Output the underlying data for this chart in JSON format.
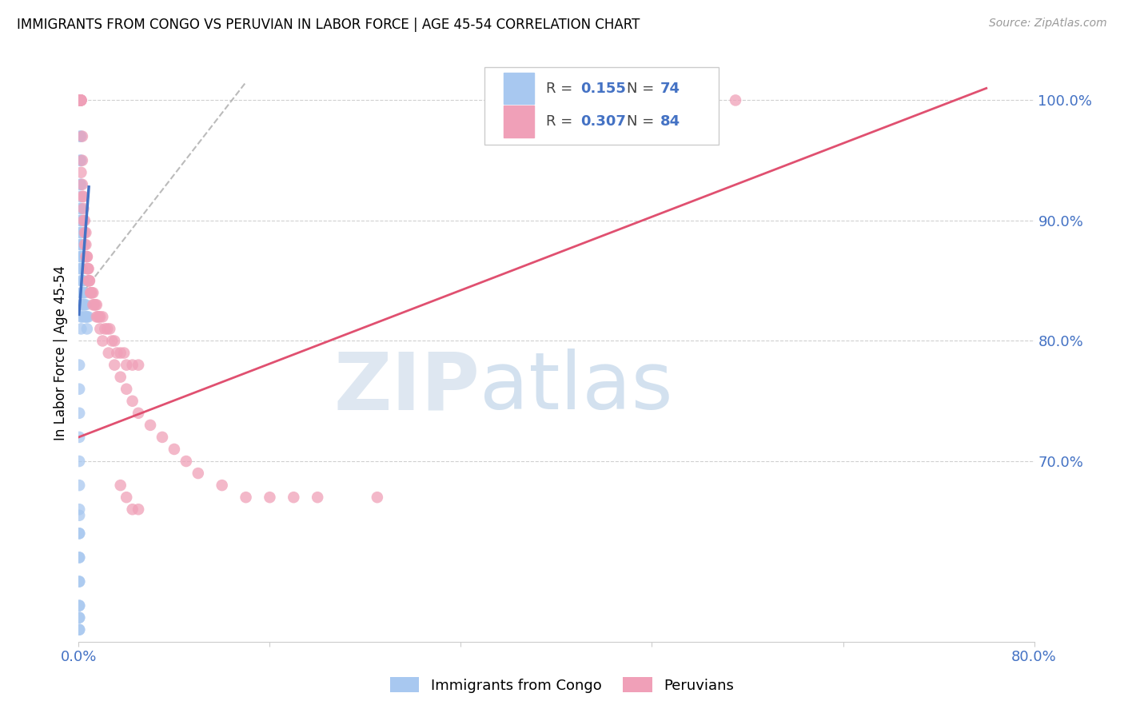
{
  "title": "IMMIGRANTS FROM CONGO VS PERUVIAN IN LABOR FORCE | AGE 45-54 CORRELATION CHART",
  "source": "Source: ZipAtlas.com",
  "ylabel_left": "In Labor Force | Age 45-54",
  "xlim": [
    0.0,
    0.8
  ],
  "ylim": [
    0.55,
    1.03
  ],
  "right_yticks": [
    1.0,
    0.9,
    0.8,
    0.7
  ],
  "right_ytick_labels": [
    "100.0%",
    "90.0%",
    "80.0%",
    "70.0%"
  ],
  "legend_R1": "0.155",
  "legend_N1": "74",
  "legend_R2": "0.307",
  "legend_N2": "84",
  "blue_color": "#a8c8f0",
  "pink_color": "#f0a0b8",
  "blue_line_color": "#4472c4",
  "pink_line_color": "#e05070",
  "right_axis_color": "#4472c4",
  "watermark_zip": "ZIP",
  "watermark_atlas": "atlas",
  "grid_color": "#d0d0d0",
  "congo_x": [
    0.001,
    0.001,
    0.001,
    0.001,
    0.001,
    0.001,
    0.001,
    0.001,
    0.001,
    0.001,
    0.001,
    0.001,
    0.001,
    0.001,
    0.001,
    0.001,
    0.001,
    0.001,
    0.001,
    0.001,
    0.002,
    0.002,
    0.002,
    0.002,
    0.002,
    0.002,
    0.002,
    0.002,
    0.002,
    0.002,
    0.002,
    0.002,
    0.002,
    0.002,
    0.003,
    0.003,
    0.003,
    0.003,
    0.003,
    0.003,
    0.003,
    0.003,
    0.004,
    0.004,
    0.004,
    0.004,
    0.005,
    0.005,
    0.005,
    0.006,
    0.006,
    0.007,
    0.007,
    0.008,
    0.0005,
    0.0005,
    0.0005,
    0.0005,
    0.0005,
    0.0005,
    0.0005,
    0.0005,
    0.0005,
    0.0005,
    0.0005,
    0.0005,
    0.0005,
    0.0005,
    0.0005,
    0.0005,
    0.0005,
    0.0005,
    0.0005,
    0.0005
  ],
  "congo_y": [
    1.0,
    1.0,
    1.0,
    1.0,
    1.0,
    1.0,
    1.0,
    1.0,
    1.0,
    1.0,
    0.97,
    0.95,
    0.93,
    0.92,
    0.91,
    0.9,
    0.89,
    0.88,
    0.87,
    0.86,
    0.97,
    0.95,
    0.93,
    0.91,
    0.9,
    0.89,
    0.88,
    0.87,
    0.86,
    0.85,
    0.84,
    0.83,
    0.82,
    0.81,
    0.9,
    0.88,
    0.87,
    0.86,
    0.85,
    0.84,
    0.83,
    0.82,
    0.87,
    0.85,
    0.84,
    0.83,
    0.84,
    0.83,
    0.82,
    0.83,
    0.82,
    0.82,
    0.81,
    0.82,
    0.78,
    0.76,
    0.74,
    0.72,
    0.7,
    0.68,
    0.66,
    0.64,
    0.62,
    0.6,
    0.58,
    0.57,
    0.56,
    0.655,
    0.64,
    0.62,
    0.6,
    0.58,
    0.56,
    0.57
  ],
  "peru_x": [
    0.001,
    0.001,
    0.001,
    0.001,
    0.001,
    0.001,
    0.001,
    0.001,
    0.001,
    0.001,
    0.002,
    0.002,
    0.002,
    0.002,
    0.003,
    0.003,
    0.003,
    0.004,
    0.004,
    0.005,
    0.005,
    0.006,
    0.006,
    0.007,
    0.007,
    0.008,
    0.008,
    0.009,
    0.009,
    0.01,
    0.011,
    0.012,
    0.013,
    0.014,
    0.015,
    0.016,
    0.017,
    0.018,
    0.02,
    0.022,
    0.024,
    0.026,
    0.028,
    0.03,
    0.032,
    0.035,
    0.038,
    0.04,
    0.045,
    0.05,
    0.002,
    0.003,
    0.004,
    0.005,
    0.006,
    0.007,
    0.008,
    0.01,
    0.012,
    0.015,
    0.018,
    0.02,
    0.025,
    0.03,
    0.035,
    0.04,
    0.045,
    0.05,
    0.06,
    0.07,
    0.08,
    0.09,
    0.1,
    0.12,
    0.14,
    0.16,
    0.18,
    0.2,
    0.25,
    0.55,
    0.035,
    0.04,
    0.045,
    0.05
  ],
  "peru_y": [
    1.0,
    1.0,
    1.0,
    1.0,
    1.0,
    1.0,
    1.0,
    1.0,
    1.0,
    1.0,
    1.0,
    1.0,
    1.0,
    1.0,
    0.97,
    0.95,
    0.93,
    0.92,
    0.91,
    0.9,
    0.89,
    0.89,
    0.88,
    0.87,
    0.87,
    0.86,
    0.86,
    0.85,
    0.85,
    0.84,
    0.84,
    0.84,
    0.83,
    0.83,
    0.83,
    0.82,
    0.82,
    0.82,
    0.82,
    0.81,
    0.81,
    0.81,
    0.8,
    0.8,
    0.79,
    0.79,
    0.79,
    0.78,
    0.78,
    0.78,
    0.94,
    0.92,
    0.9,
    0.88,
    0.87,
    0.86,
    0.85,
    0.84,
    0.83,
    0.82,
    0.81,
    0.8,
    0.79,
    0.78,
    0.77,
    0.76,
    0.75,
    0.74,
    0.73,
    0.72,
    0.71,
    0.7,
    0.69,
    0.68,
    0.67,
    0.67,
    0.67,
    0.67,
    0.67,
    1.0,
    0.68,
    0.67,
    0.66,
    0.66
  ],
  "blue_trendline_x": [
    0.0003,
    0.0085
  ],
  "blue_trendline_y": [
    0.822,
    0.928
  ],
  "pink_trendline_x": [
    0.0,
    0.76
  ],
  "pink_trendline_y": [
    0.72,
    1.01
  ],
  "ref_line_x": [
    0.0,
    0.14
  ],
  "ref_line_y": [
    0.836,
    1.015
  ]
}
